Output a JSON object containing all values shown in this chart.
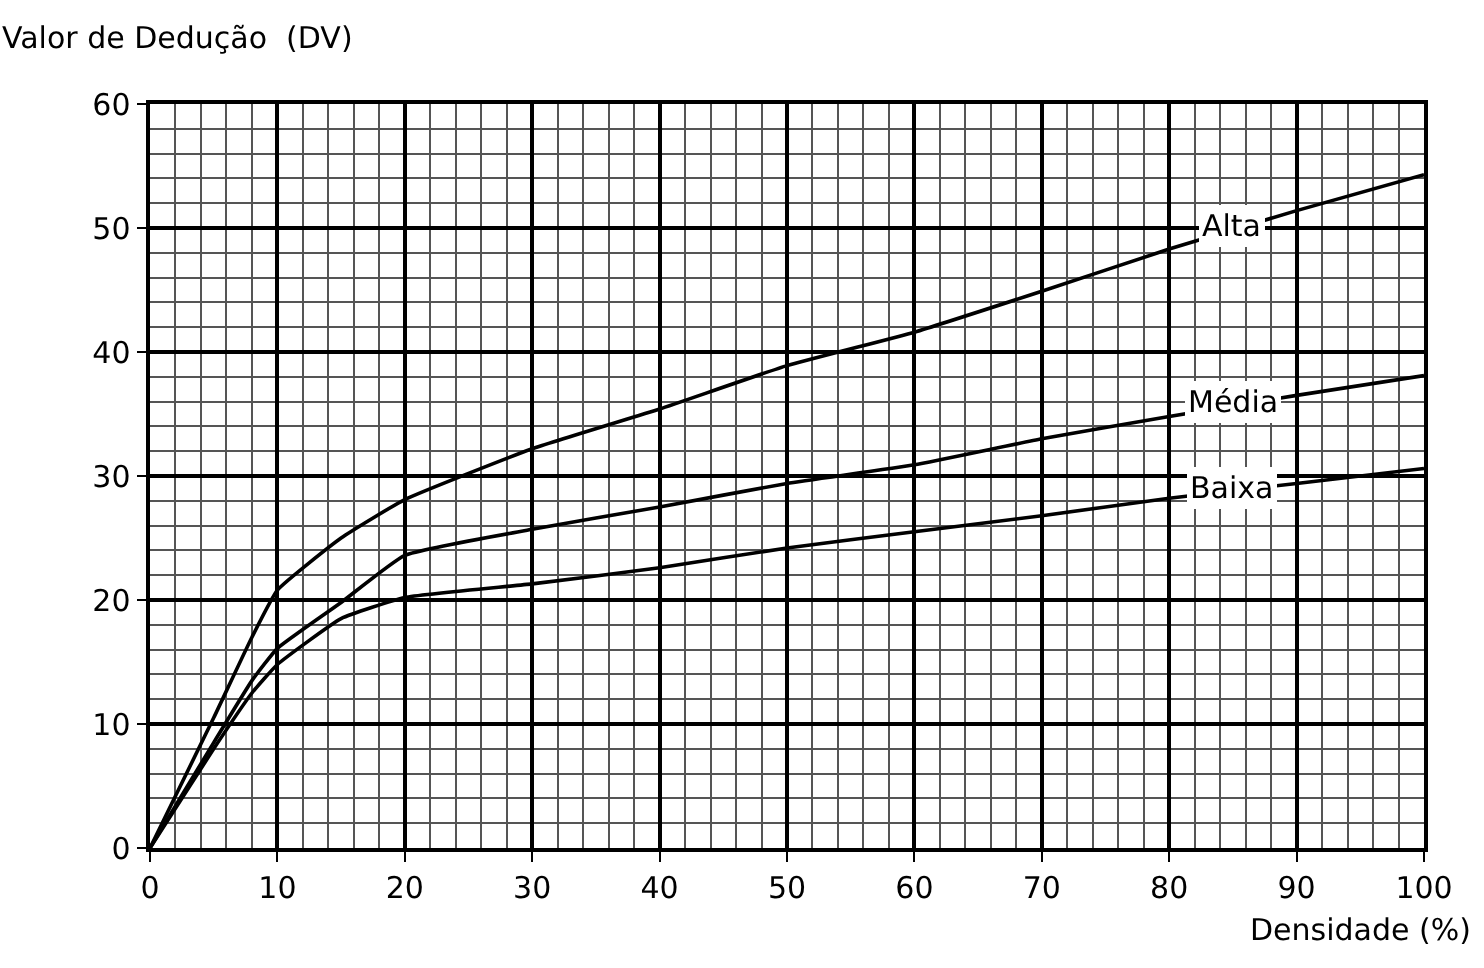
{
  "chart_data": {
    "type": "line",
    "xlabel": "Densidade (%)",
    "ylabel": "Valor de Dedução  (DV)",
    "x": [
      0,
      5,
      8,
      10,
      15,
      20,
      30,
      40,
      50,
      60,
      70,
      80,
      90,
      100
    ],
    "series": [
      {
        "name": "Alta",
        "color": "#000000",
        "values": [
          0,
          10.5,
          17,
          20.8,
          25,
          28.1,
          32.2,
          35.4,
          38.9,
          41.6,
          44.9,
          48.3,
          51.4,
          54.3
        ]
      },
      {
        "name": "Média",
        "color": "#000000",
        "values": [
          0,
          8.5,
          13.5,
          16.1,
          19.8,
          23.6,
          25.7,
          27.5,
          29.4,
          30.9,
          33,
          34.8,
          36.5,
          38.1
        ]
      },
      {
        "name": "Baixa",
        "color": "#000000",
        "values": [
          0,
          8,
          12.5,
          14.8,
          18.5,
          20.2,
          21.3,
          22.6,
          24.2,
          25.5,
          26.8,
          28.2,
          29.4,
          30.6
        ]
      }
    ],
    "xlim": [
      0,
      100
    ],
    "ylim": [
      0,
      60
    ],
    "xticks": [
      0,
      10,
      20,
      30,
      40,
      50,
      60,
      70,
      80,
      90,
      100
    ],
    "yticks": [
      0,
      10,
      20,
      30,
      40,
      50,
      60
    ],
    "grid": true,
    "legend": false,
    "marker": "none",
    "line_style": "solid"
  }
}
